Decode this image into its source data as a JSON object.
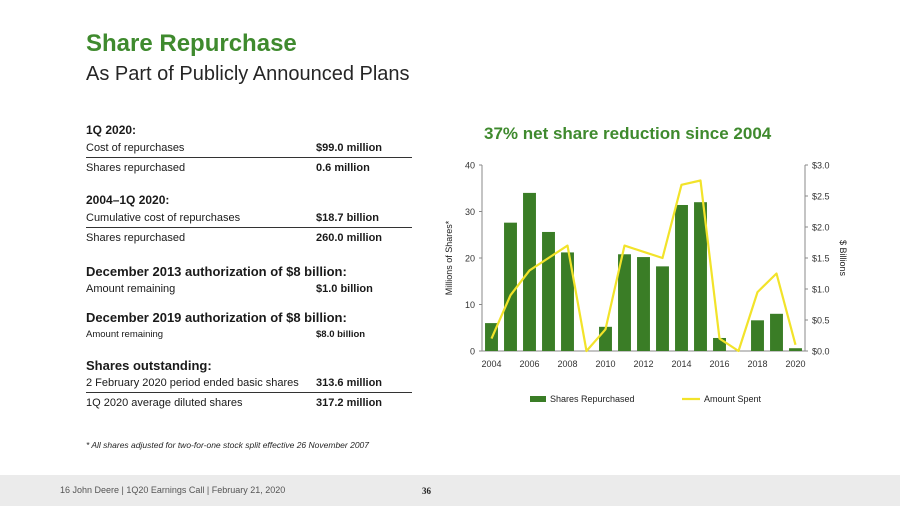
{
  "header": {
    "title": "Share Repurchase",
    "subtitle": "As Part of Publicly Announced Plans"
  },
  "table": {
    "q1_2020": {
      "heading": "1Q 2020:",
      "rows": [
        {
          "label": "Cost of repurchases",
          "value": "$99.0 million"
        },
        {
          "label": "Shares repurchased",
          "value": "0.6 million"
        }
      ]
    },
    "period_2004_2020": {
      "heading": "2004–1Q 2020:",
      "rows": [
        {
          "label": "Cumulative cost of repurchases",
          "value": "$18.7 billion"
        },
        {
          "label": "Shares repurchased",
          "value": "260.0 million"
        }
      ]
    },
    "auth_2013": {
      "heading": "December 2013 authorization of $8 billion:",
      "rows": [
        {
          "label": "Amount remaining",
          "value": "$1.0 billion"
        }
      ]
    },
    "auth_2019": {
      "heading": "December 2019 authorization of $8 billion:",
      "rows": [
        {
          "label": "Amount remaining",
          "value": "$8.0 billion"
        }
      ]
    },
    "shares_outstanding": {
      "heading": "Shares outstanding:",
      "rows": [
        {
          "label": "2 February 2020 period ended basic shares",
          "value": "313.6 million"
        },
        {
          "label": "1Q 2020 average diluted shares",
          "value": "317.2 million"
        }
      ]
    }
  },
  "footnote": "* All shares adjusted for two-for-one stock split effective 26 November 2007",
  "footer": {
    "text": "16    John Deere | 1Q20 Earnings Call | February 21, 2020",
    "page_number": "36"
  },
  "chart_data": {
    "type": "bar",
    "title": "37% net share reduction since 2004",
    "ylabel": "Millions of Shares*",
    "y2label": "$ Billions",
    "categories": [
      "2004",
      "2005",
      "2006",
      "2007",
      "2008",
      "2009",
      "2010",
      "2011",
      "2012",
      "2013",
      "2014",
      "2015",
      "2016",
      "2017",
      "2018",
      "2019",
      "2020"
    ],
    "x_tick_labels": [
      "2004",
      "2006",
      "2008",
      "2010",
      "2012",
      "2014",
      "2016",
      "2018",
      "2020"
    ],
    "ylim": [
      0,
      40
    ],
    "y_ticks": [
      "0",
      "10",
      "20",
      "30",
      "40"
    ],
    "y2lim": [
      0,
      3.0
    ],
    "y2_ticks": [
      "$0.0",
      "$0.5",
      "$1.0",
      "$1.5",
      "$2.0",
      "$2.5",
      "$3.0"
    ],
    "series": [
      {
        "name": "Shares Repurchased",
        "type": "bar",
        "axis": "left",
        "color": "#3a7d26",
        "values": [
          6.0,
          27.6,
          34.0,
          25.6,
          21.2,
          0.0,
          5.2,
          20.8,
          20.2,
          18.2,
          31.4,
          32.0,
          2.8,
          0.0,
          6.6,
          8.0,
          0.6
        ]
      },
      {
        "name": "Amount Spent",
        "type": "line",
        "axis": "right",
        "color": "#f2e32a",
        "values": [
          0.2,
          0.9,
          1.3,
          1.5,
          1.7,
          0.0,
          0.35,
          1.7,
          1.6,
          1.5,
          2.68,
          2.75,
          0.2,
          0.0,
          0.95,
          1.25,
          0.1
        ]
      }
    ],
    "legend_position": "bottom",
    "grid": false
  }
}
